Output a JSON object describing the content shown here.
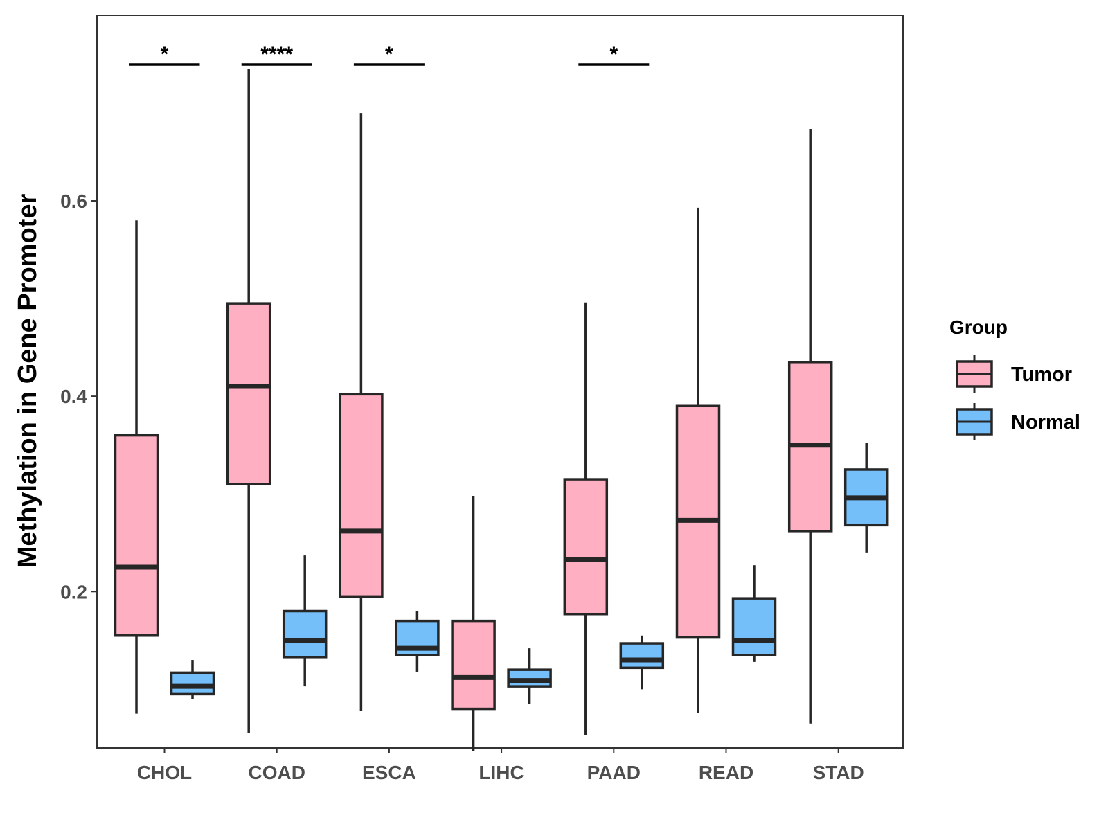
{
  "chart_data": {
    "type": "boxplot",
    "title": "",
    "xlabel": "",
    "ylabel": "Methylation in Gene Promoter",
    "ylim": [
      0.04,
      0.79
    ],
    "yticks": [
      0.2,
      0.4,
      0.6
    ],
    "ytick_labels": [
      "0.2",
      "0.4",
      "0.6"
    ],
    "grid": false,
    "categories": [
      "CHOL",
      "COAD",
      "ESCA",
      "LIHC",
      "PAAD",
      "READ",
      "STAD"
    ],
    "legend": {
      "title": "Group",
      "position": "right"
    },
    "colors": {
      "Tumor": "#ffafc2",
      "Normal": "#74bff9",
      "outline": "#262626"
    },
    "series": [
      {
        "name": "Tumor",
        "boxes": [
          {
            "min": 0.075,
            "q1": 0.155,
            "median": 0.225,
            "q3": 0.36,
            "max": 0.58
          },
          {
            "min": 0.055,
            "q1": 0.31,
            "median": 0.41,
            "q3": 0.495,
            "max": 0.735
          },
          {
            "min": 0.078,
            "q1": 0.195,
            "median": 0.262,
            "q3": 0.402,
            "max": 0.69
          },
          {
            "min": 0.037,
            "q1": 0.08,
            "median": 0.112,
            "q3": 0.17,
            "max": 0.298
          },
          {
            "min": 0.053,
            "q1": 0.177,
            "median": 0.233,
            "q3": 0.315,
            "max": 0.496
          },
          {
            "min": 0.076,
            "q1": 0.153,
            "median": 0.273,
            "q3": 0.39,
            "max": 0.593
          },
          {
            "min": 0.065,
            "q1": 0.262,
            "median": 0.35,
            "q3": 0.435,
            "max": 0.673
          }
        ]
      },
      {
        "name": "Normal",
        "boxes": [
          {
            "min": 0.09,
            "q1": 0.095,
            "median": 0.103,
            "q3": 0.117,
            "max": 0.13
          },
          {
            "min": 0.103,
            "q1": 0.133,
            "median": 0.15,
            "q3": 0.18,
            "max": 0.237
          },
          {
            "min": 0.118,
            "q1": 0.135,
            "median": 0.142,
            "q3": 0.17,
            "max": 0.18
          },
          {
            "min": 0.085,
            "q1": 0.103,
            "median": 0.109,
            "q3": 0.12,
            "max": 0.142
          },
          {
            "min": 0.1,
            "q1": 0.122,
            "median": 0.13,
            "q3": 0.147,
            "max": 0.155
          },
          {
            "min": 0.128,
            "q1": 0.135,
            "median": 0.15,
            "q3": 0.193,
            "max": 0.227
          },
          {
            "min": 0.24,
            "q1": 0.268,
            "median": 0.296,
            "q3": 0.325,
            "max": 0.352
          }
        ]
      }
    ],
    "significance": [
      {
        "category": "CHOL",
        "label": "*"
      },
      {
        "category": "COAD",
        "label": "****"
      },
      {
        "category": "ESCA",
        "label": "*"
      },
      {
        "category": "PAAD",
        "label": "*"
      }
    ]
  }
}
